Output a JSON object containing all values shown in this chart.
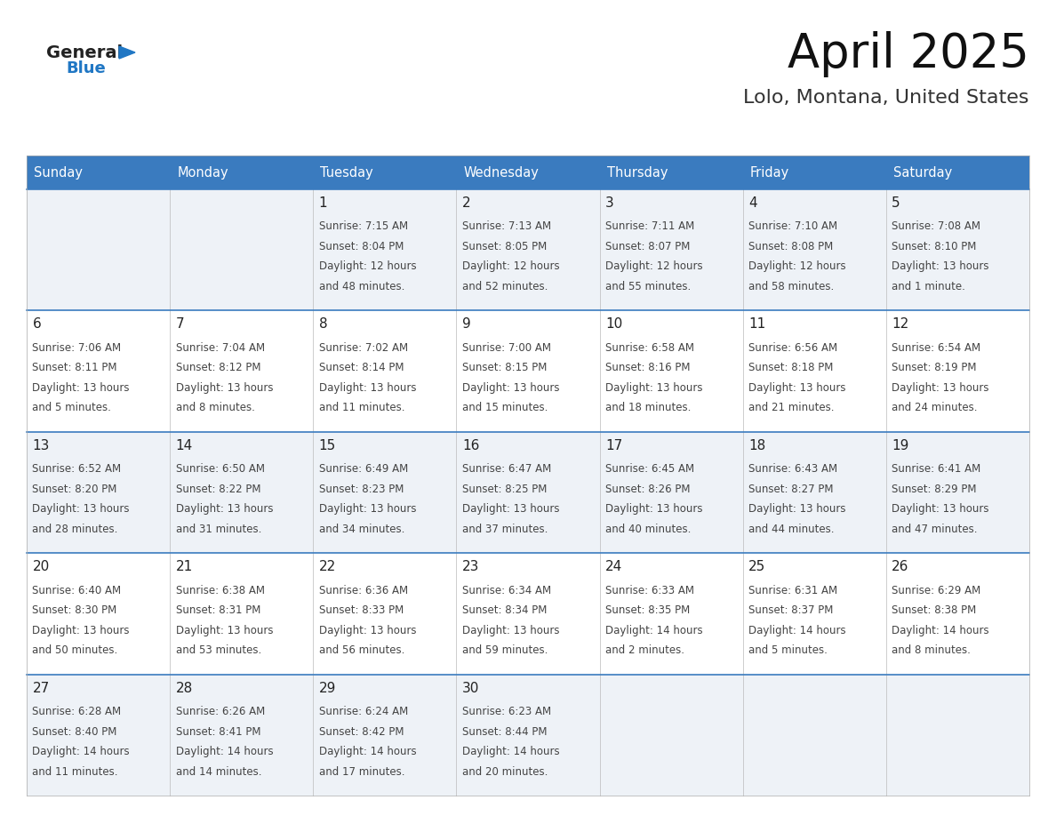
{
  "title": "April 2025",
  "subtitle": "Lolo, Montana, United States",
  "header_color": "#3a7bbf",
  "header_text_color": "#ffffff",
  "border_color": "#3a7bbf",
  "text_color": "#444444",
  "cell_bg_light": "#eef2f7",
  "cell_bg_white": "#ffffff",
  "days_of_week": [
    "Sunday",
    "Monday",
    "Tuesday",
    "Wednesday",
    "Thursday",
    "Friday",
    "Saturday"
  ],
  "weeks": [
    [
      {
        "day": "",
        "sunrise": "",
        "sunset": "",
        "daylight1": "",
        "daylight2": ""
      },
      {
        "day": "",
        "sunrise": "",
        "sunset": "",
        "daylight1": "",
        "daylight2": ""
      },
      {
        "day": "1",
        "sunrise": "Sunrise: 7:15 AM",
        "sunset": "Sunset: 8:04 PM",
        "daylight1": "Daylight: 12 hours",
        "daylight2": "and 48 minutes."
      },
      {
        "day": "2",
        "sunrise": "Sunrise: 7:13 AM",
        "sunset": "Sunset: 8:05 PM",
        "daylight1": "Daylight: 12 hours",
        "daylight2": "and 52 minutes."
      },
      {
        "day": "3",
        "sunrise": "Sunrise: 7:11 AM",
        "sunset": "Sunset: 8:07 PM",
        "daylight1": "Daylight: 12 hours",
        "daylight2": "and 55 minutes."
      },
      {
        "day": "4",
        "sunrise": "Sunrise: 7:10 AM",
        "sunset": "Sunset: 8:08 PM",
        "daylight1": "Daylight: 12 hours",
        "daylight2": "and 58 minutes."
      },
      {
        "day": "5",
        "sunrise": "Sunrise: 7:08 AM",
        "sunset": "Sunset: 8:10 PM",
        "daylight1": "Daylight: 13 hours",
        "daylight2": "and 1 minute."
      }
    ],
    [
      {
        "day": "6",
        "sunrise": "Sunrise: 7:06 AM",
        "sunset": "Sunset: 8:11 PM",
        "daylight1": "Daylight: 13 hours",
        "daylight2": "and 5 minutes."
      },
      {
        "day": "7",
        "sunrise": "Sunrise: 7:04 AM",
        "sunset": "Sunset: 8:12 PM",
        "daylight1": "Daylight: 13 hours",
        "daylight2": "and 8 minutes."
      },
      {
        "day": "8",
        "sunrise": "Sunrise: 7:02 AM",
        "sunset": "Sunset: 8:14 PM",
        "daylight1": "Daylight: 13 hours",
        "daylight2": "and 11 minutes."
      },
      {
        "day": "9",
        "sunrise": "Sunrise: 7:00 AM",
        "sunset": "Sunset: 8:15 PM",
        "daylight1": "Daylight: 13 hours",
        "daylight2": "and 15 minutes."
      },
      {
        "day": "10",
        "sunrise": "Sunrise: 6:58 AM",
        "sunset": "Sunset: 8:16 PM",
        "daylight1": "Daylight: 13 hours",
        "daylight2": "and 18 minutes."
      },
      {
        "day": "11",
        "sunrise": "Sunrise: 6:56 AM",
        "sunset": "Sunset: 8:18 PM",
        "daylight1": "Daylight: 13 hours",
        "daylight2": "and 21 minutes."
      },
      {
        "day": "12",
        "sunrise": "Sunrise: 6:54 AM",
        "sunset": "Sunset: 8:19 PM",
        "daylight1": "Daylight: 13 hours",
        "daylight2": "and 24 minutes."
      }
    ],
    [
      {
        "day": "13",
        "sunrise": "Sunrise: 6:52 AM",
        "sunset": "Sunset: 8:20 PM",
        "daylight1": "Daylight: 13 hours",
        "daylight2": "and 28 minutes."
      },
      {
        "day": "14",
        "sunrise": "Sunrise: 6:50 AM",
        "sunset": "Sunset: 8:22 PM",
        "daylight1": "Daylight: 13 hours",
        "daylight2": "and 31 minutes."
      },
      {
        "day": "15",
        "sunrise": "Sunrise: 6:49 AM",
        "sunset": "Sunset: 8:23 PM",
        "daylight1": "Daylight: 13 hours",
        "daylight2": "and 34 minutes."
      },
      {
        "day": "16",
        "sunrise": "Sunrise: 6:47 AM",
        "sunset": "Sunset: 8:25 PM",
        "daylight1": "Daylight: 13 hours",
        "daylight2": "and 37 minutes."
      },
      {
        "day": "17",
        "sunrise": "Sunrise: 6:45 AM",
        "sunset": "Sunset: 8:26 PM",
        "daylight1": "Daylight: 13 hours",
        "daylight2": "and 40 minutes."
      },
      {
        "day": "18",
        "sunrise": "Sunrise: 6:43 AM",
        "sunset": "Sunset: 8:27 PM",
        "daylight1": "Daylight: 13 hours",
        "daylight2": "and 44 minutes."
      },
      {
        "day": "19",
        "sunrise": "Sunrise: 6:41 AM",
        "sunset": "Sunset: 8:29 PM",
        "daylight1": "Daylight: 13 hours",
        "daylight2": "and 47 minutes."
      }
    ],
    [
      {
        "day": "20",
        "sunrise": "Sunrise: 6:40 AM",
        "sunset": "Sunset: 8:30 PM",
        "daylight1": "Daylight: 13 hours",
        "daylight2": "and 50 minutes."
      },
      {
        "day": "21",
        "sunrise": "Sunrise: 6:38 AM",
        "sunset": "Sunset: 8:31 PM",
        "daylight1": "Daylight: 13 hours",
        "daylight2": "and 53 minutes."
      },
      {
        "day": "22",
        "sunrise": "Sunrise: 6:36 AM",
        "sunset": "Sunset: 8:33 PM",
        "daylight1": "Daylight: 13 hours",
        "daylight2": "and 56 minutes."
      },
      {
        "day": "23",
        "sunrise": "Sunrise: 6:34 AM",
        "sunset": "Sunset: 8:34 PM",
        "daylight1": "Daylight: 13 hours",
        "daylight2": "and 59 minutes."
      },
      {
        "day": "24",
        "sunrise": "Sunrise: 6:33 AM",
        "sunset": "Sunset: 8:35 PM",
        "daylight1": "Daylight: 14 hours",
        "daylight2": "and 2 minutes."
      },
      {
        "day": "25",
        "sunrise": "Sunrise: 6:31 AM",
        "sunset": "Sunset: 8:37 PM",
        "daylight1": "Daylight: 14 hours",
        "daylight2": "and 5 minutes."
      },
      {
        "day": "26",
        "sunrise": "Sunrise: 6:29 AM",
        "sunset": "Sunset: 8:38 PM",
        "daylight1": "Daylight: 14 hours",
        "daylight2": "and 8 minutes."
      }
    ],
    [
      {
        "day": "27",
        "sunrise": "Sunrise: 6:28 AM",
        "sunset": "Sunset: 8:40 PM",
        "daylight1": "Daylight: 14 hours",
        "daylight2": "and 11 minutes."
      },
      {
        "day": "28",
        "sunrise": "Sunrise: 6:26 AM",
        "sunset": "Sunset: 8:41 PM",
        "daylight1": "Daylight: 14 hours",
        "daylight2": "and 14 minutes."
      },
      {
        "day": "29",
        "sunrise": "Sunrise: 6:24 AM",
        "sunset": "Sunset: 8:42 PM",
        "daylight1": "Daylight: 14 hours",
        "daylight2": "and 17 minutes."
      },
      {
        "day": "30",
        "sunrise": "Sunrise: 6:23 AM",
        "sunset": "Sunset: 8:44 PM",
        "daylight1": "Daylight: 14 hours",
        "daylight2": "and 20 minutes."
      },
      {
        "day": "",
        "sunrise": "",
        "sunset": "",
        "daylight1": "",
        "daylight2": ""
      },
      {
        "day": "",
        "sunrise": "",
        "sunset": "",
        "daylight1": "",
        "daylight2": ""
      },
      {
        "day": "",
        "sunrise": "",
        "sunset": "",
        "daylight1": "",
        "daylight2": ""
      }
    ]
  ],
  "logo_general_color": "#222222",
  "logo_blue_color": "#2077c4",
  "logo_triangle_color": "#2077c4"
}
